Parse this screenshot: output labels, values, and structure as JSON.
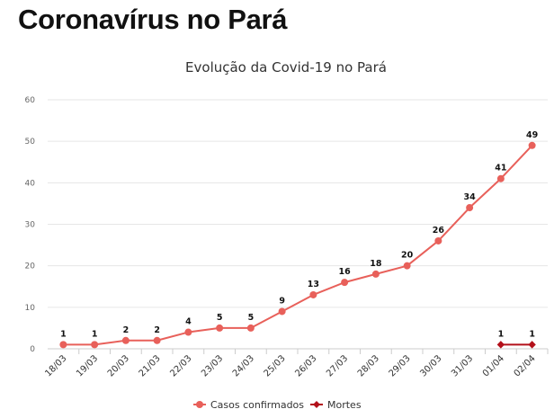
{
  "page": {
    "heading": "Coronavírus no Pará"
  },
  "chart_data": {
    "type": "line",
    "title": "Evolução da Covid-19 no Pará",
    "xlabel": "",
    "ylabel": "",
    "categories": [
      "18/03",
      "19/03",
      "20/03",
      "21/03",
      "22/03",
      "23/03",
      "24/03",
      "25/03",
      "26/03",
      "27/03",
      "28/03",
      "29/03",
      "30/03",
      "31/03",
      "01/04",
      "02/04"
    ],
    "ylim": [
      0,
      60
    ],
    "yticks": [
      0,
      10,
      20,
      30,
      40,
      50,
      60
    ],
    "grid": true,
    "legend_position": "bottom",
    "series": [
      {
        "name": "Casos confirmados",
        "color": "#e8605a",
        "marker": "circle",
        "values": [
          1,
          1,
          2,
          2,
          4,
          5,
          5,
          9,
          13,
          16,
          18,
          20,
          26,
          34,
          41,
          49
        ]
      },
      {
        "name": "Mortes",
        "color": "#b3101a",
        "marker": "diamond",
        "values": [
          null,
          null,
          null,
          null,
          null,
          null,
          null,
          null,
          null,
          null,
          null,
          null,
          null,
          null,
          1,
          1
        ]
      }
    ]
  }
}
